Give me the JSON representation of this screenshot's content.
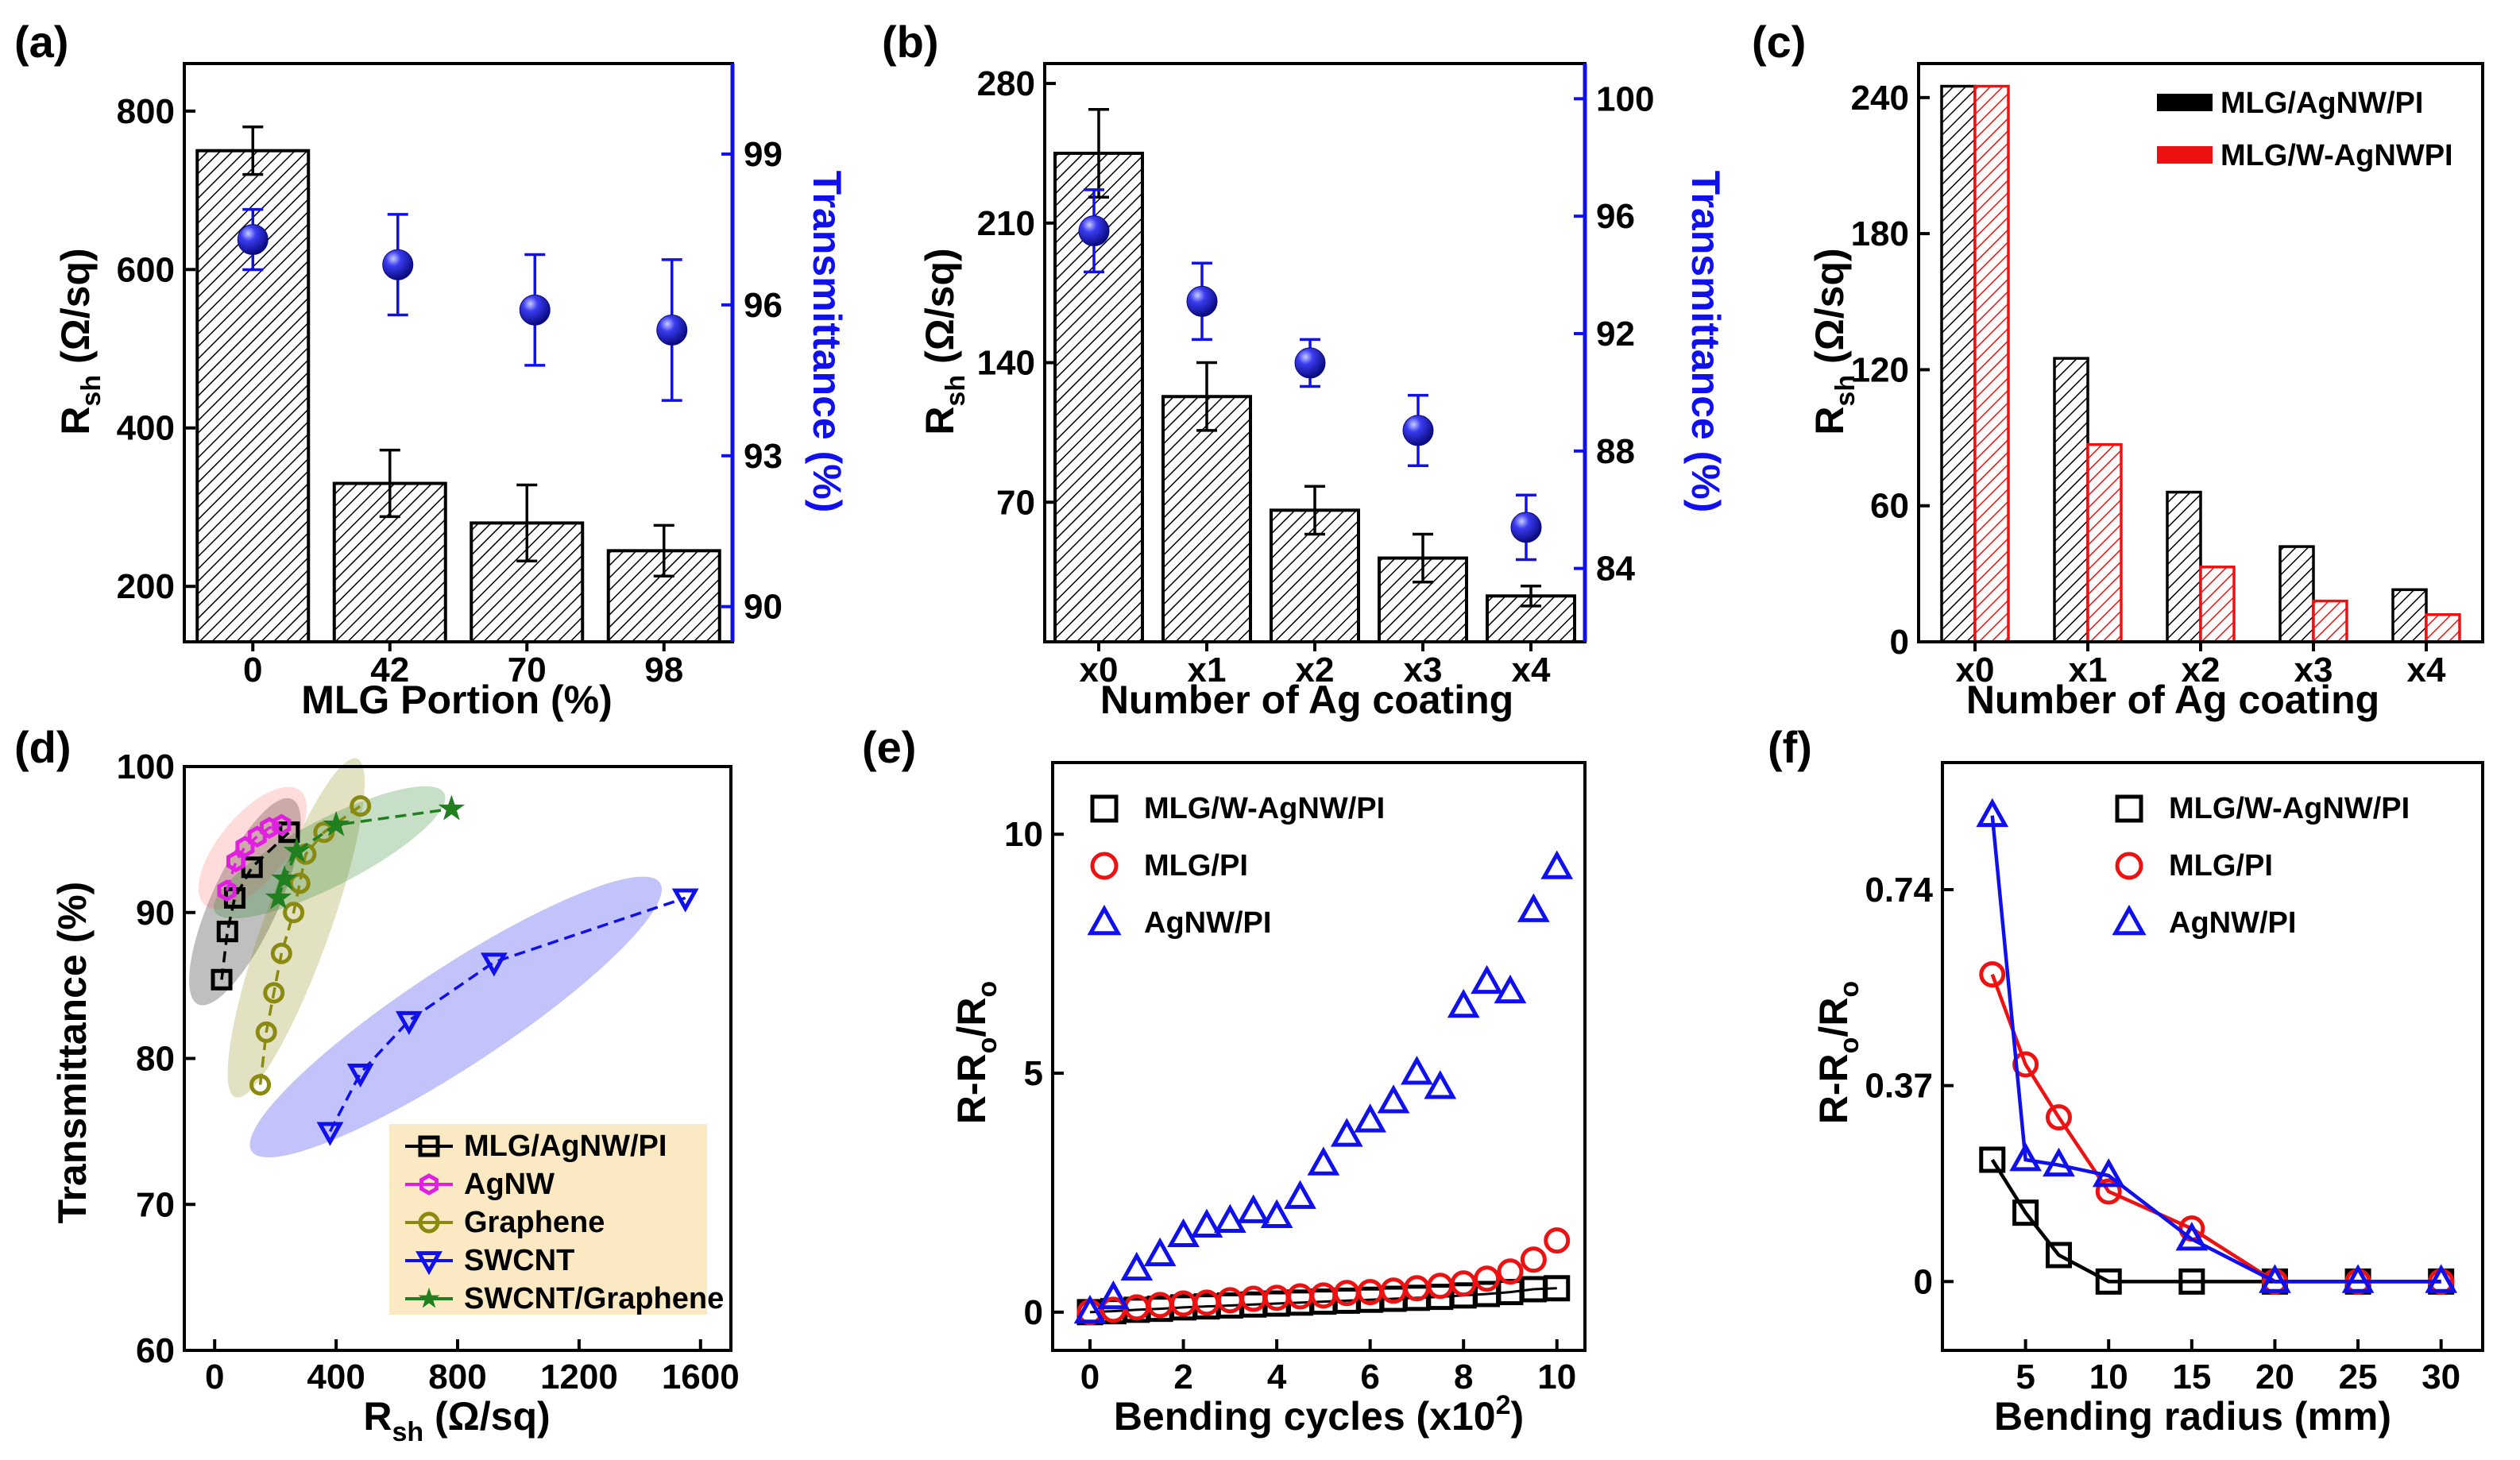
{
  "colors": {
    "blue": "#1010ee",
    "red": "#ee1111",
    "green": "#208020",
    "olive": "#8a8a10",
    "magenta": "#e020e0",
    "black": "#000000"
  },
  "chart_data": [
    {
      "id": "a",
      "panel_label": "(a)",
      "type": "bar",
      "xlabel": "MLG Portion (%)",
      "ylabel": "R_sh (Ω/sq)",
      "ylabel_main": "R",
      "ylabel_sub": "sh",
      "ylabel_unit": "(Ω/sq)",
      "y2label": "Transmittance (%)",
      "categories": [
        "0",
        "42",
        "70",
        "98"
      ],
      "ylim": [
        130,
        860
      ],
      "yticks": [
        200,
        400,
        600,
        800
      ],
      "y2lim": [
        89.3,
        100.8
      ],
      "y2ticks": [
        90,
        93,
        96,
        99
      ],
      "series": [
        {
          "name": "Sheet resistance",
          "axis": "left",
          "values": [
            750,
            330,
            280,
            245
          ],
          "errors": [
            30,
            42,
            48,
            32
          ]
        },
        {
          "name": "Transmittance",
          "axis": "right",
          "values": [
            97.3,
            96.8,
            95.9,
            95.5
          ],
          "errors": [
            0.6,
            1.0,
            1.1,
            1.4
          ]
        }
      ]
    },
    {
      "id": "b",
      "panel_label": "(b)",
      "type": "bar",
      "xlabel": "Number of Ag coating",
      "ylabel": "R_sh (Ω/sq)",
      "ylabel_main": "R",
      "ylabel_sub": "sh",
      "ylabel_unit": "(Ω/sq)",
      "y2label": "Transmittance (%)",
      "categories": [
        "x0",
        "x1",
        "x2",
        "x3",
        "x4"
      ],
      "ylim": [
        0,
        290
      ],
      "yticks": [
        70,
        140,
        210,
        280
      ],
      "y2lim": [
        81.5,
        101.2
      ],
      "y2ticks": [
        84,
        88,
        92,
        96,
        100
      ],
      "series": [
        {
          "name": "Sheet resistance",
          "axis": "left",
          "values": [
            245,
            123,
            66,
            42,
            23
          ],
          "errors": [
            22,
            17,
            12,
            12,
            5
          ]
        },
        {
          "name": "Transmittance",
          "axis": "right",
          "values": [
            95.5,
            93.1,
            91.0,
            88.7,
            85.4
          ],
          "errors": [
            1.4,
            1.3,
            0.8,
            1.2,
            1.1
          ]
        }
      ]
    },
    {
      "id": "c",
      "panel_label": "(c)",
      "type": "bar",
      "xlabel": "Number of Ag coating",
      "ylabel": "R_sh (Ω/sq)",
      "ylabel_main": "R",
      "ylabel_sub": "sh",
      "ylabel_unit": "(Ω/sq)",
      "categories": [
        "x0",
        "x1",
        "x2",
        "x3",
        "x4"
      ],
      "ylim": [
        0,
        255
      ],
      "yticks": [
        0,
        60,
        120,
        180,
        240
      ],
      "series": [
        {
          "name": "MLG/AgNW/PI",
          "color": "#000000",
          "values": [
            245,
            125,
            66,
            42,
            23
          ]
        },
        {
          "name": "MLG/W-AgNWPI",
          "color": "#ee1111",
          "values": [
            245,
            87,
            33,
            18,
            12
          ]
        }
      ]
    },
    {
      "id": "d",
      "panel_label": "(d)",
      "type": "scatter",
      "xlabel": "R_sh (Ω/sq)",
      "xlabel_main": "R",
      "xlabel_sub": "sh",
      "xlabel_unit": "(Ω/sq)",
      "ylabel": "Transmittance (%)",
      "xlim": [
        -100,
        1700
      ],
      "xticks": [
        0,
        400,
        800,
        1200,
        1600
      ],
      "ylim": [
        60,
        100
      ],
      "yticks": [
        60,
        70,
        80,
        90,
        100
      ],
      "series": [
        {
          "name": "MLG/AgNW/PI",
          "marker": "square",
          "color": "#000000",
          "x": [
            23,
            42,
            66,
            123,
            245
          ],
          "y": [
            85.4,
            88.7,
            91.0,
            93.1,
            95.5
          ]
        },
        {
          "name": "AgNW",
          "marker": "hexagon",
          "color": "#e020e0",
          "x": [
            40,
            70,
            100,
            140,
            180,
            220
          ],
          "y": [
            91.5,
            93.5,
            94.5,
            95.2,
            95.8,
            96.0
          ]
        },
        {
          "name": "Graphene",
          "marker": "circle",
          "color": "#8a8a10",
          "x": [
            150,
            170,
            195,
            220,
            260,
            280,
            300,
            360,
            480
          ],
          "y": [
            78.2,
            81.8,
            84.5,
            87.2,
            90.0,
            92.0,
            94.0,
            95.5,
            97.3
          ]
        },
        {
          "name": "SWCNT",
          "marker": "triangle-down",
          "color": "#1010ee",
          "x": [
            380,
            480,
            640,
            920,
            1550
          ],
          "y": [
            75.0,
            79.0,
            82.6,
            86.6,
            91.0
          ]
        },
        {
          "name": "SWCNT/Graphene",
          "marker": "star",
          "color": "#208020",
          "x": [
            210,
            230,
            270,
            400,
            780
          ],
          "y": [
            91.0,
            92.3,
            94.2,
            96.0,
            97.1
          ]
        }
      ]
    },
    {
      "id": "e",
      "panel_label": "(e)",
      "type": "scatter",
      "xlabel": "Bending cycles (x10²)",
      "xlabel_main": "Bending cycles (x10",
      "xlabel_sup": "2",
      "xlabel_end": ")",
      "ylabel": "R-R₀/R₀",
      "ylabel_main": "R-R",
      "ylabel_sub1": "o",
      "ylabel_mid": "/R",
      "ylabel_sub2": "o",
      "xlim": [
        -0.8,
        10.6
      ],
      "xticks": [
        0,
        2,
        4,
        6,
        8,
        10
      ],
      "ylim": [
        -0.8,
        11.5
      ],
      "yticks": [
        0,
        5,
        10
      ],
      "series": [
        {
          "name": "MLG/W-AgNW/PI",
          "marker": "square",
          "color": "#000000",
          "x": [
            0,
            0.5,
            1,
            1.5,
            2,
            2.5,
            3,
            3.5,
            4,
            4.5,
            5,
            5.5,
            6,
            6.5,
            7,
            7.5,
            8,
            8.5,
            9,
            9.5,
            10
          ],
          "y": [
            0,
            0.02,
            0.05,
            0.07,
            0.1,
            0.12,
            0.14,
            0.16,
            0.18,
            0.2,
            0.22,
            0.24,
            0.26,
            0.28,
            0.3,
            0.32,
            0.35,
            0.38,
            0.42,
            0.48,
            0.5
          ]
        },
        {
          "name": "MLG/PI",
          "marker": "circle",
          "color": "#ee1111",
          "x": [
            0,
            0.5,
            1,
            1.5,
            2,
            2.5,
            3,
            3.5,
            4,
            4.5,
            5,
            5.5,
            6,
            6.5,
            7,
            7.5,
            8,
            8.5,
            9,
            9.5,
            10
          ],
          "y": [
            0,
            0.05,
            0.1,
            0.15,
            0.18,
            0.2,
            0.25,
            0.28,
            0.3,
            0.33,
            0.35,
            0.4,
            0.42,
            0.45,
            0.5,
            0.55,
            0.6,
            0.7,
            0.85,
            1.1,
            1.5
          ]
        },
        {
          "name": "AgNW/PI",
          "marker": "triangle",
          "color": "#1010ee",
          "x": [
            0,
            0.5,
            1,
            1.5,
            2,
            2.5,
            3,
            3.5,
            4,
            4.5,
            5,
            5.5,
            6,
            6.5,
            7,
            7.5,
            8,
            8.5,
            9,
            9.5,
            10
          ],
          "y": [
            0,
            0.3,
            0.9,
            1.2,
            1.6,
            1.8,
            1.9,
            2.1,
            2.0,
            2.4,
            3.1,
            3.7,
            4.0,
            4.4,
            5.0,
            4.7,
            6.4,
            6.9,
            6.7,
            8.4,
            9.3
          ]
        }
      ]
    },
    {
      "id": "f",
      "panel_label": "(f)",
      "type": "line",
      "xlabel": "Bending radius (mm)",
      "ylabel": "R-R₀/R₀",
      "ylabel_main": "R-R",
      "ylabel_sub1": "o",
      "ylabel_mid": "/R",
      "ylabel_sub2": "o",
      "xlim": [
        0,
        32.5
      ],
      "xticks": [
        5,
        10,
        15,
        20,
        25,
        30
      ],
      "ylim": [
        -0.13,
        0.98
      ],
      "yticks": [
        0,
        0.37,
        0.74
      ],
      "series": [
        {
          "name": "MLG/W-AgNW/PI",
          "marker": "square",
          "color": "#000000",
          "x": [
            3,
            5,
            7,
            10,
            15,
            20,
            25,
            30
          ],
          "y": [
            0.23,
            0.13,
            0.05,
            0,
            0,
            0,
            0,
            0
          ]
        },
        {
          "name": "MLG/PI",
          "marker": "circle",
          "color": "#ee1111",
          "x": [
            3,
            5,
            7,
            10,
            15,
            20,
            25,
            30
          ],
          "y": [
            0.58,
            0.41,
            0.31,
            0.17,
            0.1,
            0,
            0,
            0
          ]
        },
        {
          "name": "AgNW/PI",
          "marker": "triangle",
          "color": "#1010ee",
          "x": [
            3,
            5,
            7,
            10,
            15,
            20,
            25,
            30
          ],
          "y": [
            0.88,
            0.23,
            0.22,
            0.2,
            0.08,
            0,
            0,
            0
          ]
        }
      ]
    }
  ]
}
